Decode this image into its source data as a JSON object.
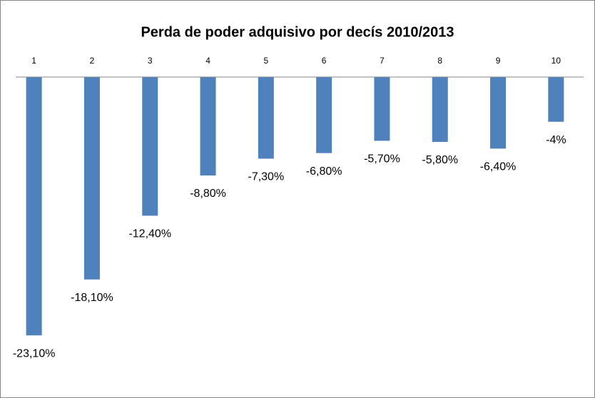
{
  "chart_data": {
    "type": "bar",
    "title": "Perda de poder adquisivo por decís 2010/2013",
    "categories": [
      "1",
      "2",
      "3",
      "4",
      "5",
      "6",
      "7",
      "8",
      "9",
      "10"
    ],
    "values": [
      -23.1,
      -18.1,
      -12.4,
      -8.8,
      -7.3,
      -6.8,
      -5.7,
      -5.8,
      -6.4,
      -4
    ],
    "value_labels": [
      "-23,10%",
      "-18,10%",
      "-12,40%",
      "-8,80%",
      "-7,30%",
      "-6,80%",
      "-5,70%",
      "-5,80%",
      "-6,40%",
      "-4%"
    ],
    "color": "#4f81bd",
    "ylim": [
      -25,
      0
    ]
  }
}
